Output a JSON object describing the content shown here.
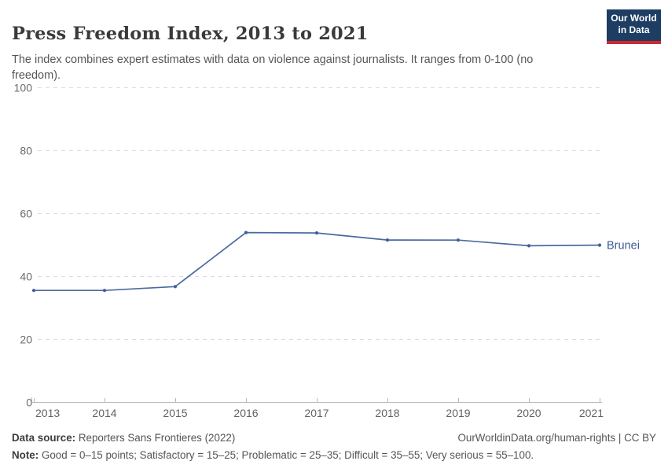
{
  "header": {
    "title": "Press Freedom Index, 2013 to 2021",
    "subtitle": "The index combines expert estimates with data on violence against journalists. It ranges from 0-100 (no freedom).",
    "logo": {
      "line1": "Our World",
      "line2": "in Data"
    }
  },
  "chart_data": {
    "type": "line",
    "title": "Press Freedom Index, 2013 to 2021",
    "x": [
      2013,
      2014,
      2015,
      2016,
      2017,
      2018,
      2019,
      2020,
      2021
    ],
    "series": [
      {
        "name": "Brunei",
        "values": [
          35.45,
          35.45,
          36.68,
          53.85,
          53.72,
          51.48,
          51.45,
          49.65,
          49.85
        ]
      }
    ],
    "ylim": [
      0,
      100
    ],
    "yticks": [
      0,
      20,
      40,
      60,
      80,
      100
    ],
    "xlabel": "",
    "ylabel": "",
    "grid": "horizontal-dashed",
    "legend_position": "line-end-label",
    "line_color": "#4c6aa0",
    "marker_color": "#3f5e9b",
    "label_color": "#3d5b96"
  },
  "footer": {
    "datasource_label": "Data source:",
    "datasource_value": " Reporters Sans Frontieres (2022)",
    "attribution": "OurWorldinData.org/human-rights | CC BY",
    "note_label": "Note:",
    "note_value": " Good = 0–15 points; Satisfactory = 15–25; Problematic = 25–35; Difficult = 35–55; Very serious = 55–100."
  },
  "colors": {
    "logo_background": "#1d3d63",
    "logo_stripe": "#cc2a31",
    "grid": "#dcdcdc",
    "axis": "#b8b8b8",
    "tick_text": "#666666"
  }
}
